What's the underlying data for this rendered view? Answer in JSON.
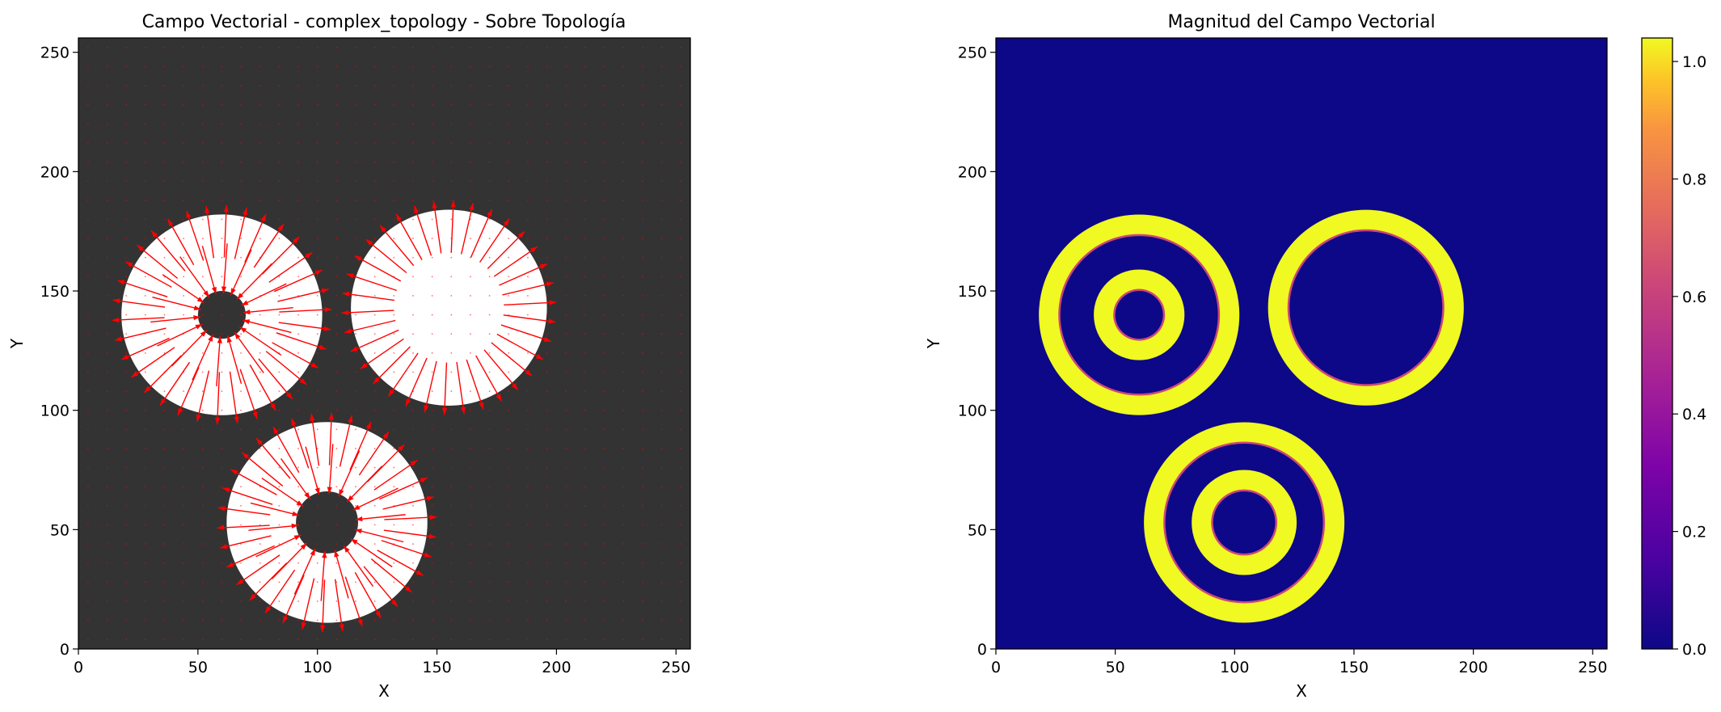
{
  "chart_data": [
    {
      "type": "quiver",
      "title": "Campo Vectorial - complex_topology - Sobre Topología",
      "xlabel": "X",
      "ylabel": "Y",
      "xlim": [
        0,
        256
      ],
      "ylim": [
        0,
        256
      ],
      "xticks": [
        0,
        50,
        100,
        150,
        200,
        250
      ],
      "yticks": [
        0,
        50,
        100,
        150,
        200,
        250
      ],
      "grid": false,
      "colors": {
        "background": "#333333",
        "topology": "#ffffff",
        "arrows": "#ff0000"
      },
      "topology": {
        "discs": [
          {
            "cx": 60,
            "cy": 140,
            "r": 42
          },
          {
            "cx": 155,
            "cy": 143,
            "r": 41
          },
          {
            "cx": 104,
            "cy": 53,
            "r": 42
          }
        ],
        "holes": [
          {
            "cx": 60,
            "cy": 140,
            "r": 10
          },
          {
            "cx": 104,
            "cy": 53,
            "r": 13
          }
        ]
      }
    },
    {
      "type": "heatmap",
      "title": "Magnitud del Campo Vectorial",
      "xlabel": "X",
      "ylabel": "Y",
      "xlim": [
        0,
        256
      ],
      "ylim": [
        0,
        256
      ],
      "xticks": [
        0,
        50,
        100,
        150,
        200,
        250
      ],
      "yticks": [
        0,
        50,
        100,
        150,
        200,
        250
      ],
      "colorbar": {
        "label": "",
        "min": 0.0,
        "max": 1.04,
        "ticks": [
          "0.0",
          "0.2",
          "0.4",
          "0.6",
          "0.8",
          "1.0"
        ]
      },
      "colormap": "plasma",
      "colors": {
        "low": "#0d0887",
        "high": "#f0f921"
      },
      "rings": [
        {
          "cx": 60,
          "cy": 140,
          "r_outer": 42,
          "r_inner": 33
        },
        {
          "cx": 60,
          "cy": 140,
          "r_outer": 19,
          "r_inner": 10
        },
        {
          "cx": 155,
          "cy": 143,
          "r_outer": 41,
          "r_inner": 32
        },
        {
          "cx": 104,
          "cy": 53,
          "r_outer": 42,
          "r_inner": 33
        },
        {
          "cx": 104,
          "cy": 53,
          "r_outer": 22,
          "r_inner": 13
        }
      ]
    }
  ]
}
